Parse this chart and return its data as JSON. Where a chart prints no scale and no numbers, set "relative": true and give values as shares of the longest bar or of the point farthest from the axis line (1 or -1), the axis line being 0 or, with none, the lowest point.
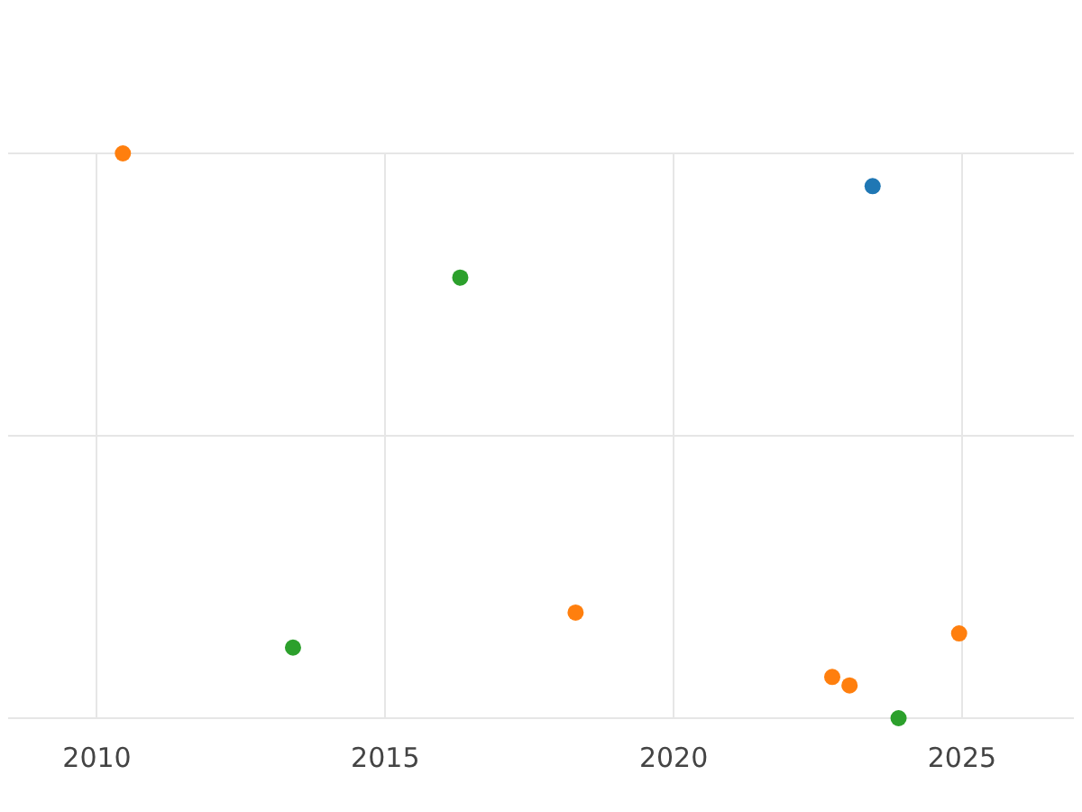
{
  "chart_data": {
    "type": "scatter",
    "relative": true,
    "xlim": [
      2008.46,
      2026.94
    ],
    "xticks": [
      2010,
      2015,
      2020,
      2025
    ],
    "tick_labels": "x",
    "grid": true,
    "marker": "circle",
    "legend": false,
    "series": [
      {
        "color": "#ff7f0e",
        "x": [
          2010.45,
          2018.3,
          2022.75,
          2023.05,
          2024.95
        ],
        "values": [
          1,
          0.187,
          0.073,
          0.058,
          0.15
        ]
      },
      {
        "color": "#1f77b4",
        "x": [
          2023.45
        ],
        "values": [
          0.942
        ]
      },
      {
        "color": "#2ca02c",
        "x": [
          2016.3,
          2013.4,
          2023.9
        ],
        "values": [
          0.78,
          0.125,
          0
        ]
      }
    ]
  }
}
